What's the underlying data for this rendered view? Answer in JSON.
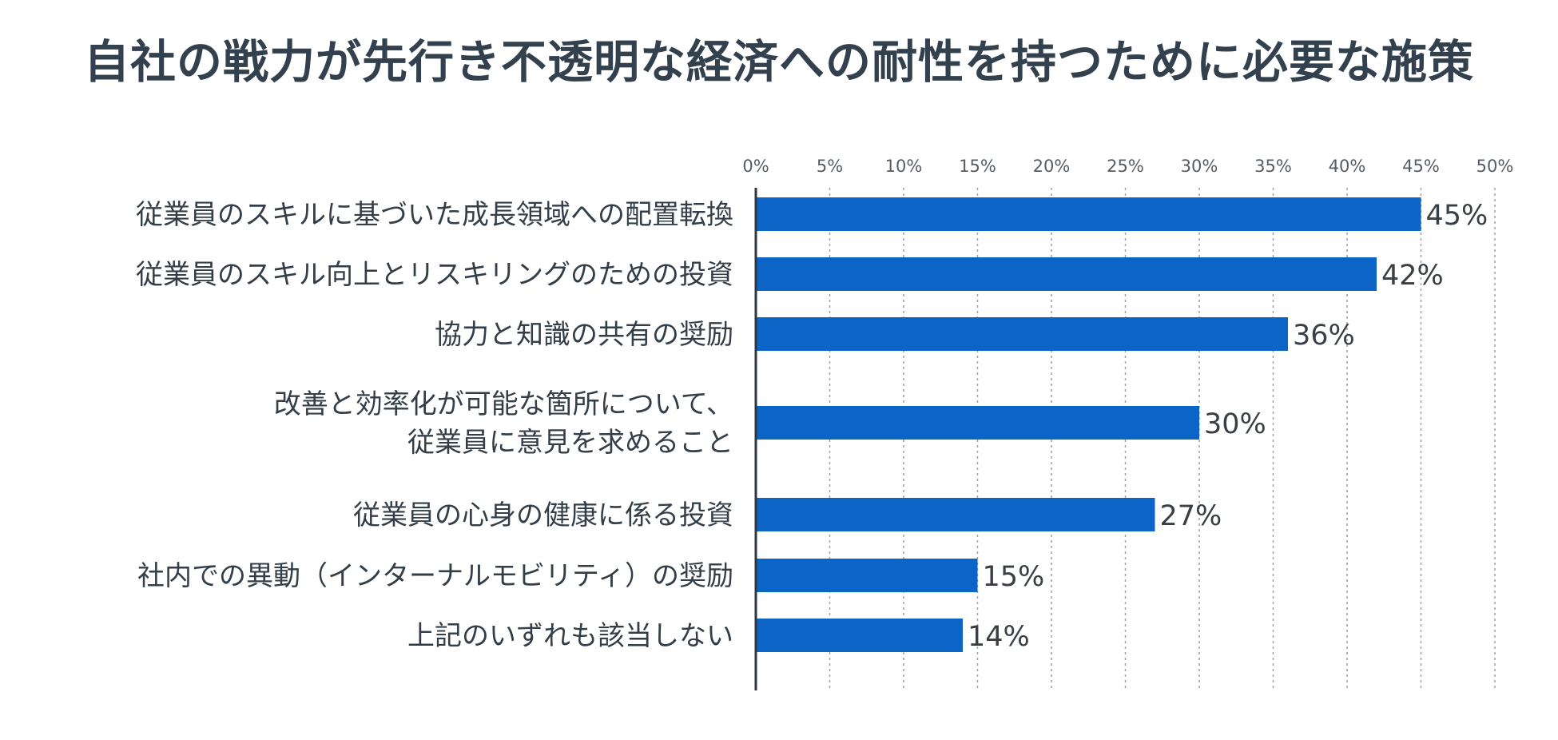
{
  "chart_data": {
    "type": "bar",
    "orientation": "horizontal",
    "title": "自社の戦力が先行き不透明な経済への耐性を持つために必要な施策",
    "xlabel": "",
    "ylabel": "",
    "xlim": [
      0,
      50
    ],
    "x_ticks": [
      "0%",
      "5%",
      "10%",
      "15%",
      "20%",
      "25%",
      "30%",
      "35%",
      "40%",
      "45%",
      "50%"
    ],
    "x_tick_values": [
      0,
      5,
      10,
      15,
      20,
      25,
      30,
      35,
      40,
      45,
      50
    ],
    "grid": "vertical dotted",
    "categories": [
      [
        "従業員のスキルに基づいた成長領域への配置転換"
      ],
      [
        "従業員のスキル向上とリスキリングのための投資"
      ],
      [
        "協力と知識の共有の奨励"
      ],
      [
        "改善と効率化が可能な箇所について、",
        "従業員に意見を求めること"
      ],
      [
        "従業員の心身の健康に係る投資"
      ],
      [
        "社内での異動（インターナルモビリティ）の奨励"
      ],
      [
        "上記のいずれも該当しない"
      ]
    ],
    "values": [
      45,
      42,
      36,
      30,
      27,
      15,
      14
    ],
    "value_labels": [
      "45%",
      "42%",
      "36%",
      "30%",
      "27%",
      "15%",
      "14%"
    ],
    "bar_color": "#0d64c7"
  },
  "colors": {
    "title": "#33414e",
    "label": "#333e48",
    "axis": "#2e3640",
    "grid": "#9aa1a8",
    "tick": "#555c63"
  }
}
